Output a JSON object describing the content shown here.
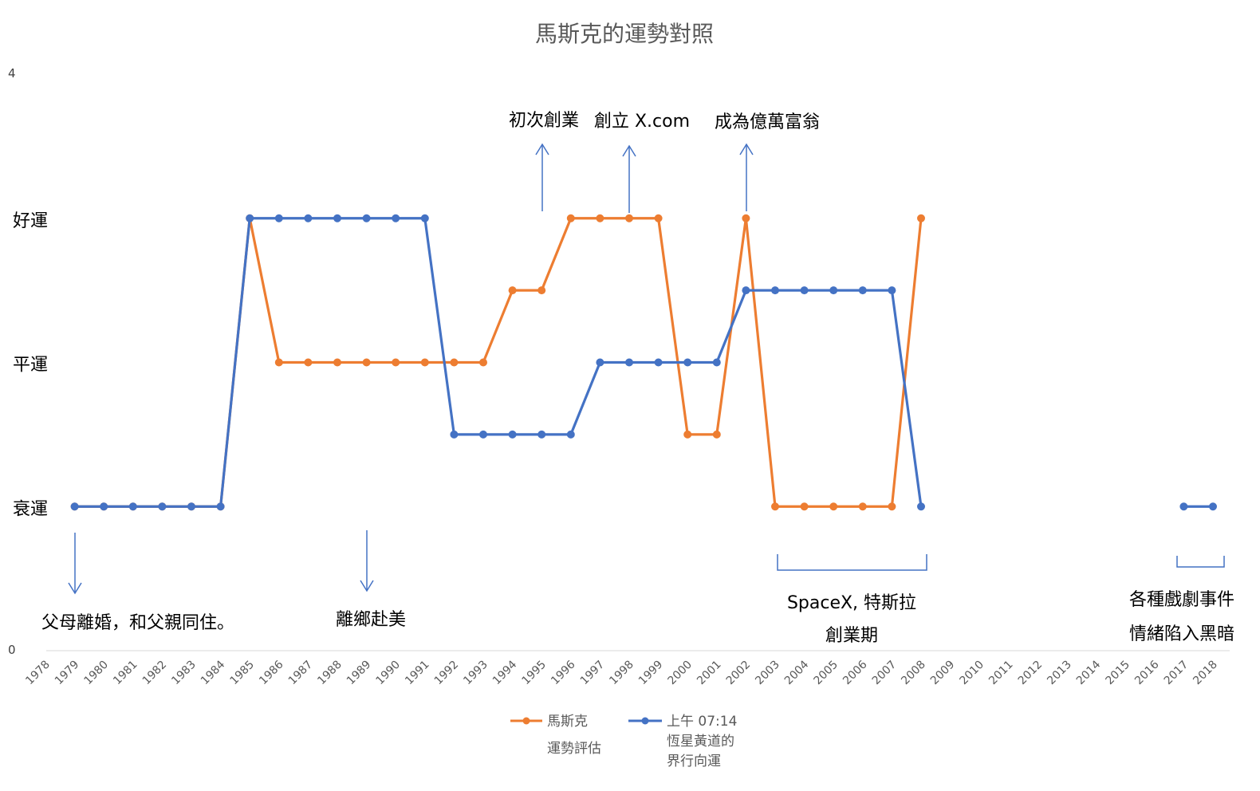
{
  "chart_data": {
    "type": "line",
    "title": "馬斯克的運勢對照",
    "y_axis": {
      "min_label": "0",
      "max_label": "4",
      "ylim": [
        0,
        4
      ],
      "levels": [
        {
          "label": "衰運",
          "value": 1
        },
        {
          "label": "平運",
          "value": 2
        },
        {
          "label": "好運",
          "value": 3
        }
      ]
    },
    "x": [
      1978,
      1979,
      1980,
      1981,
      1982,
      1983,
      1984,
      1985,
      1986,
      1987,
      1988,
      1989,
      1990,
      1991,
      1992,
      1993,
      1994,
      1995,
      1996,
      1997,
      1998,
      1999,
      2000,
      2001,
      2002,
      2003,
      2004,
      2005,
      2006,
      2007,
      2008,
      2009,
      2010,
      2011,
      2012,
      2013,
      2014,
      2015,
      2016,
      2017,
      2018
    ],
    "series": [
      {
        "name": "馬斯克",
        "name_line2": "運勢評估",
        "color": "#ED7D31",
        "values": [
          null,
          1,
          1,
          1,
          1,
          1,
          1,
          3,
          2,
          2,
          2,
          2,
          2,
          2,
          2,
          2,
          2.5,
          2.5,
          3,
          3,
          3,
          3,
          1.5,
          1.5,
          3,
          1,
          1,
          1,
          1,
          1,
          3,
          null,
          null,
          null,
          null,
          null,
          null,
          null,
          null,
          null,
          null
        ]
      },
      {
        "name": "上午 07:14",
        "name_line2": "恆星黃道的",
        "name_line3": "界行向運",
        "color": "#4472C4",
        "values": [
          null,
          1,
          1,
          1,
          1,
          1,
          1,
          3,
          3,
          3,
          3,
          3,
          3,
          3,
          1.5,
          1.5,
          1.5,
          1.5,
          1.5,
          2,
          2,
          2,
          2,
          2,
          2.5,
          2.5,
          2.5,
          2.5,
          2.5,
          2.5,
          1,
          null,
          null,
          null,
          null,
          null,
          null,
          null,
          null,
          1,
          1
        ]
      }
    ],
    "annotations": [
      {
        "id": "divorce",
        "lines": [
          "父母離婚，和父親同住。"
        ]
      },
      {
        "id": "emigrate",
        "lines": [
          "離鄉赴美"
        ]
      },
      {
        "id": "first-startup",
        "lines": [
          "初次創業"
        ]
      },
      {
        "id": "xcom",
        "lines": [
          "創立 X.com"
        ]
      },
      {
        "id": "billionaire",
        "lines": [
          "成為億萬富翁"
        ]
      },
      {
        "id": "spacex-tesla",
        "lines": [
          "SpaceX, 特斯拉",
          "創業期"
        ]
      },
      {
        "id": "drama",
        "lines": [
          "各種戲劇事件",
          "情緒陷入黑暗"
        ]
      }
    ],
    "legend_position": "bottom",
    "grid": false
  }
}
